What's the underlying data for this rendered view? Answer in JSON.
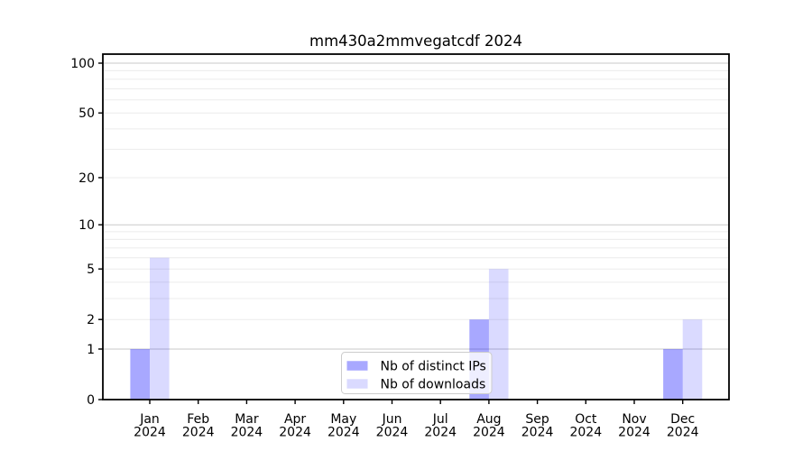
{
  "chart_data": {
    "type": "bar",
    "title": "mm430a2mmvegatcdf 2024",
    "categories": [
      "Jan",
      "Feb",
      "Mar",
      "Apr",
      "May",
      "Jun",
      "Jul",
      "Aug",
      "Sep",
      "Oct",
      "Nov",
      "Dec"
    ],
    "category_year": "2024",
    "series": [
      {
        "name": "Nb of distinct IPs",
        "color": "rgba(0,0,255,0.34)",
        "solid_color": "#a8a8f8",
        "values": [
          1,
          0,
          0,
          0,
          0,
          0,
          0,
          2,
          0,
          0,
          0,
          1
        ]
      },
      {
        "name": "Nb of downloads",
        "color": "rgba(0,0,255,0.145)",
        "solid_color": "#dcdcf8",
        "values": [
          6,
          0,
          0,
          0,
          0,
          0,
          0,
          5,
          0,
          0,
          0,
          2
        ]
      }
    ],
    "xlabel": "",
    "ylabel": "",
    "y_scale": "log10(1+value)",
    "ylim": [
      0,
      113
    ],
    "y_tick_labels": [
      0,
      1,
      2,
      5,
      10,
      20,
      50,
      100
    ],
    "y_major_gridlines": [
      1,
      10,
      100
    ],
    "y_minor_gridlines": [
      2,
      3,
      4,
      5,
      6,
      7,
      8,
      9,
      20,
      30,
      40,
      50,
      60,
      70,
      80,
      90
    ],
    "grid": true,
    "legend_position": "lower center",
    "colors": {
      "grid_major": "#c9c9c9",
      "grid_minor": "#ececec",
      "axis": "#000000",
      "legend_border": "#cccccc",
      "legend_background": "rgba(255,255,255,0.8)",
      "background": "#ffffff"
    }
  }
}
